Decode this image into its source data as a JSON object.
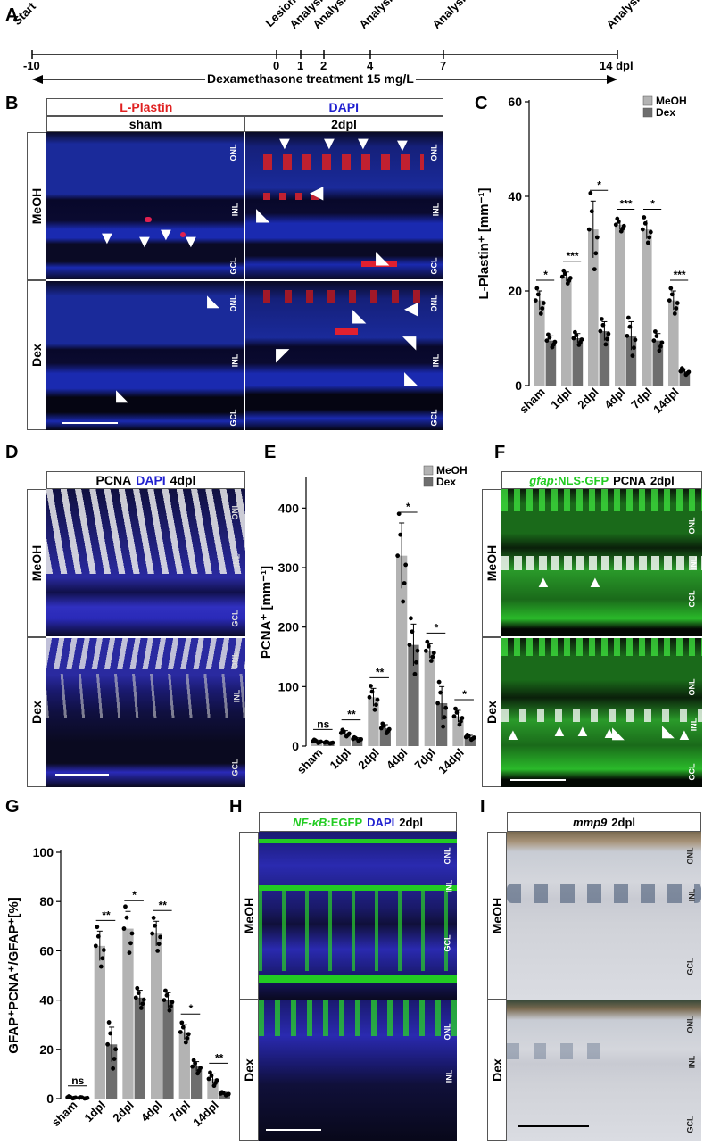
{
  "panels": {
    "A": "A",
    "B": "B",
    "C": "C",
    "D": "D",
    "E": "E",
    "F": "F",
    "G": "G",
    "H": "H",
    "I": "I"
  },
  "timeline": {
    "start": "Start",
    "lesion": "Lesion",
    "analysis": "Analysis",
    "ticks": [
      "-10",
      "0",
      "1",
      "2",
      "4",
      "7",
      "14 dpl"
    ],
    "treatment": "Dexamethasone treatment 15 mg/L"
  },
  "panel_b": {
    "title_red": "L-Plastin",
    "title_blue": "DAPI",
    "col1": "sham",
    "col2": "2dpl",
    "row1": "MeOH",
    "row2": "Dex",
    "layers": [
      "ONL",
      "INL",
      "GCL"
    ]
  },
  "panel_d": {
    "title_a": "PCNA",
    "title_b": "DAPI",
    "title_c": "4dpl",
    "row1": "MeOH",
    "row2": "Dex",
    "layers": [
      "ONL",
      "INL",
      "GCL"
    ]
  },
  "panel_f": {
    "title_a": "gfap",
    "title_b": ":NLS-GFP",
    "title_c": "PCNA",
    "title_d": "2dpl",
    "row1": "MeOH",
    "row2": "Dex",
    "layers": [
      "ONL",
      "INL",
      "GCL"
    ]
  },
  "panel_h": {
    "title_a": "NF-κB",
    "title_b": ":EGFP",
    "title_c": "DAPI",
    "title_d": "2dpl",
    "row1": "MeOH",
    "row2": "Dex",
    "layers": [
      "ONL",
      "INL",
      "GCL"
    ]
  },
  "panel_i": {
    "title_a": "mmp9",
    "title_b": "2dpl",
    "row1": "MeOH",
    "row2": "Dex",
    "layers": [
      "ONL",
      "INL",
      "GCL"
    ]
  },
  "colors": {
    "meoh": "#b3b3b3",
    "dex": "#6e6e6e",
    "red": "#e02020",
    "blue": "#2020d0",
    "green": "#22cc22"
  },
  "chart_data": [
    {
      "panel": "C",
      "type": "bar",
      "ylabel": "L-Plastin⁺ [mm⁻¹]",
      "ylim": [
        0,
        60
      ],
      "yticks": [
        "0",
        "20",
        "40",
        "60"
      ],
      "categories": [
        "sham",
        "1dpl",
        "2dpl",
        "4dpl",
        "7dpl",
        "14dpl"
      ],
      "series": [
        {
          "name": "MeOH",
          "values": [
            18,
            23,
            33,
            34,
            33,
            18
          ],
          "err": [
            2,
            1,
            6,
            1,
            2,
            2
          ],
          "color": "#b3b3b3"
        },
        {
          "name": "Dex",
          "values": [
            9.5,
            10,
            11.5,
            10.5,
            9.5,
            3
          ],
          "err": [
            1,
            1,
            2,
            3,
            1.5,
            0.5
          ],
          "color": "#6e6e6e"
        }
      ],
      "significance": [
        "*",
        "***",
        "*",
        "***",
        "*",
        "***"
      ],
      "legend": "top-right"
    },
    {
      "panel": "E",
      "type": "bar",
      "ylabel": "PCNA⁺ [mm⁻¹]",
      "ylim": [
        0,
        450
      ],
      "yticks": [
        "0",
        "100",
        "200",
        "300",
        "400"
      ],
      "categories": [
        "sham",
        "1dpl",
        "2dpl",
        "4dpl",
        "7dpl",
        "14dpl"
      ],
      "series": [
        {
          "name": "MeOH",
          "values": [
            8,
            22,
            82,
            320,
            160,
            50
          ],
          "err": [
            2,
            4,
            15,
            55,
            12,
            10
          ],
          "color": "#b3b3b3"
        },
        {
          "name": "Dex",
          "values": [
            6,
            12,
            30,
            170,
            72,
            15
          ],
          "err": [
            1,
            2,
            6,
            35,
            28,
            3
          ],
          "color": "#6e6e6e"
        }
      ],
      "significance": [
        "ns",
        "**",
        "**",
        "*",
        "*",
        "*"
      ],
      "legend": "top-right"
    },
    {
      "panel": "G",
      "type": "bar",
      "ylabel": "GFAP⁺PCNA⁺/GFAP⁺[%]",
      "ylim": [
        0,
        100
      ],
      "yticks": [
        "0",
        "20",
        "40",
        "60",
        "80",
        "100"
      ],
      "categories": [
        "sham",
        "1dpl",
        "2dpl",
        "4dpl",
        "7dpl",
        "14dpl"
      ],
      "series": [
        {
          "name": "MeOH",
          "values": [
            0.5,
            62,
            69,
            67,
            27,
            8
          ],
          "err": [
            0.3,
            6,
            7,
            5,
            3,
            2
          ],
          "color": "#b3b3b3"
        },
        {
          "name": "Dex",
          "values": [
            0.3,
            22,
            41,
            40,
            13,
            2
          ],
          "err": [
            0.2,
            7,
            3,
            3,
            2,
            0.5
          ],
          "color": "#6e6e6e"
        }
      ],
      "significance": [
        "ns",
        "**",
        "*",
        "**",
        "*",
        "**"
      ]
    }
  ]
}
